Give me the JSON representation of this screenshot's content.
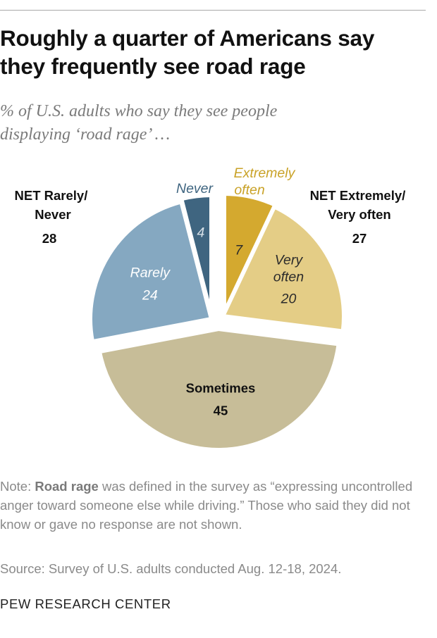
{
  "title": "Roughly a quarter of Americans say\nthey frequently see road rage",
  "subtitle": "% of U.S. adults who say they see people\ndisplaying ‘road rage’ …",
  "chart_data": {
    "type": "pie",
    "title": "Roughly a quarter of Americans say they frequently see road rage",
    "units": "%",
    "slices": [
      {
        "label": "Extremely often",
        "value": 7,
        "color": "#d4a92f",
        "label_color": "#c9a227",
        "value_color": "#2b2b2b"
      },
      {
        "label": "Very often",
        "value": 20,
        "color": "#e4cd86",
        "label_color": "#2b2b2b",
        "value_color": "#2b2b2b"
      },
      {
        "label": "Sometimes",
        "value": 45,
        "color": "#c7bd98",
        "label_color": "#111111",
        "value_color": "#111111"
      },
      {
        "label": "Rarely",
        "value": 24,
        "color": "#85a8c1",
        "label_color": "#ffffff",
        "value_color": "#ffffff"
      },
      {
        "label": "Never",
        "value": 4,
        "color": "#3f6580",
        "label_color": "#3f6580",
        "value_color": "#d6e0e7"
      }
    ],
    "groups": [
      {
        "label": "NET Extremely/\nVery often",
        "value": 27,
        "members": [
          "Extremely often",
          "Very often"
        ]
      },
      {
        "label": "NET Rarely/\nNever",
        "value": 28,
        "members": [
          "Rarely",
          "Never"
        ]
      }
    ]
  },
  "note": {
    "prefix": "Note: ",
    "term": "Road rage",
    "rest": " was defined in the survey as “expressing uncontrolled anger toward someone else while driving.” Those who said they did not know or gave no response are not shown."
  },
  "source": "Source: Survey of U.S. adults conducted Aug. 12-18, 2024.",
  "brand": "PEW RESEARCH CENTER"
}
